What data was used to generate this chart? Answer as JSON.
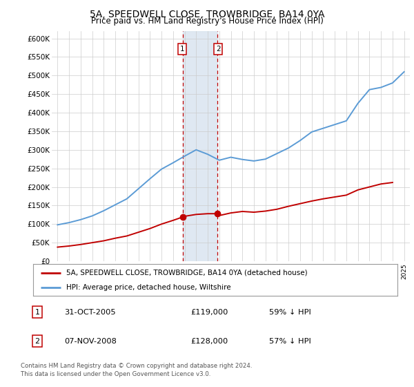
{
  "title": "5A, SPEEDWELL CLOSE, TROWBRIDGE, BA14 0YA",
  "subtitle": "Price paid vs. HM Land Registry's House Price Index (HPI)",
  "ylabel_ticks": [
    "£0",
    "£50K",
    "£100K",
    "£150K",
    "£200K",
    "£250K",
    "£300K",
    "£350K",
    "£400K",
    "£450K",
    "£500K",
    "£550K",
    "£600K"
  ],
  "ytick_values": [
    0,
    50000,
    100000,
    150000,
    200000,
    250000,
    300000,
    350000,
    400000,
    450000,
    500000,
    550000,
    600000
  ],
  "ylim": [
    0,
    620000
  ],
  "xlim_start": 1994.5,
  "xlim_end": 2025.5,
  "hpi_color": "#5b9bd5",
  "price_color": "#c00000",
  "shade_color": "#dce6f1",
  "sale1_date": 2005.83,
  "sale1_price": 119000,
  "sale1_label": "1",
  "sale2_date": 2008.85,
  "sale2_price": 128000,
  "sale2_label": "2",
  "legend_line1": "5A, SPEEDWELL CLOSE, TROWBRIDGE, BA14 0YA (detached house)",
  "legend_line2": "HPI: Average price, detached house, Wiltshire",
  "table_row1": [
    "1",
    "31-OCT-2005",
    "£119,000",
    "59% ↓ HPI"
  ],
  "table_row2": [
    "2",
    "07-NOV-2008",
    "£128,000",
    "57% ↓ HPI"
  ],
  "footnote": "Contains HM Land Registry data © Crown copyright and database right 2024.\nThis data is licensed under the Open Government Licence v3.0.",
  "background_color": "#ffffff",
  "grid_color": "#cccccc",
  "years_hpi": [
    1995,
    1996,
    1997,
    1998,
    1999,
    2000,
    2001,
    2002,
    2003,
    2004,
    2005,
    2006,
    2007,
    2008,
    2009,
    2010,
    2011,
    2012,
    2013,
    2014,
    2015,
    2016,
    2017,
    2018,
    2019,
    2020,
    2021,
    2022,
    2023,
    2024,
    2025
  ],
  "hpi_values": [
    98000,
    104000,
    112000,
    122000,
    136000,
    152000,
    168000,
    195000,
    222000,
    248000,
    265000,
    283000,
    300000,
    288000,
    272000,
    280000,
    274000,
    270000,
    275000,
    290000,
    305000,
    325000,
    348000,
    358000,
    368000,
    378000,
    425000,
    462000,
    468000,
    480000,
    510000
  ],
  "years_price": [
    1995,
    1996,
    1997,
    1998,
    1999,
    2000,
    2001,
    2002,
    2003,
    2004,
    2005,
    2005.83,
    2006,
    2007,
    2008,
    2008.85,
    2009,
    2010,
    2011,
    2012,
    2013,
    2014,
    2015,
    2016,
    2017,
    2018,
    2019,
    2020,
    2021,
    2022,
    2023,
    2024
  ],
  "price_values": [
    38000,
    41000,
    45000,
    50000,
    55000,
    62000,
    68000,
    78000,
    88000,
    100000,
    110000,
    119000,
    121000,
    126000,
    128000,
    128000,
    123000,
    130000,
    134000,
    132000,
    135000,
    140000,
    148000,
    155000,
    162000,
    168000,
    173000,
    178000,
    192000,
    200000,
    208000,
    212000
  ]
}
